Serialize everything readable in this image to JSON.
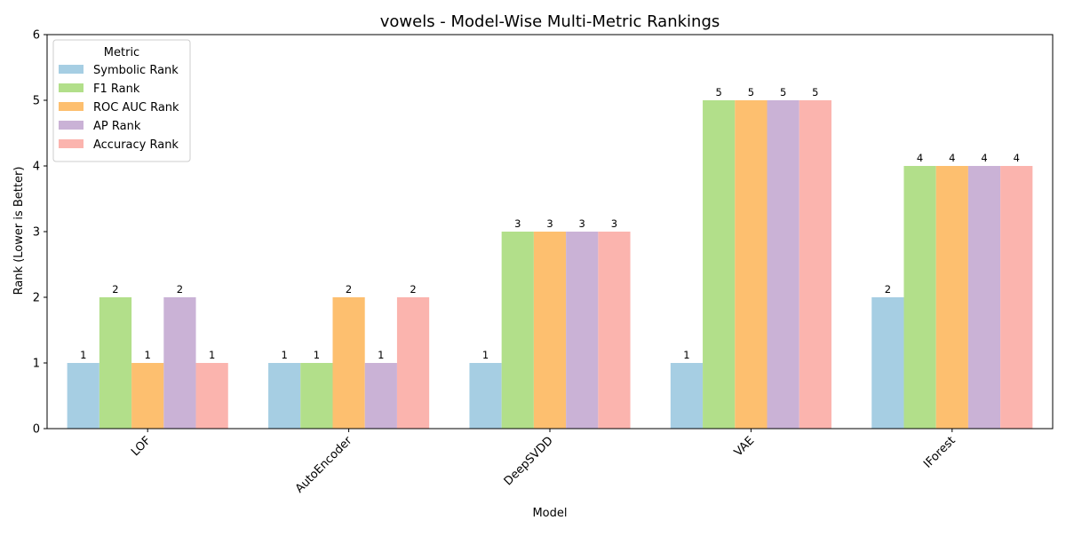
{
  "chart_data": {
    "type": "bar",
    "title": "vowels - Model-Wise Multi-Metric Rankings",
    "xlabel": "Model",
    "ylabel": "Rank (Lower is Better)",
    "ylim": [
      0,
      6
    ],
    "yticks": [
      0,
      1,
      2,
      3,
      4,
      5,
      6
    ],
    "categories": [
      "LOF",
      "AutoEncoder",
      "DeepSVDD",
      "VAE",
      "IForest"
    ],
    "series": [
      {
        "name": "Symbolic Rank",
        "color": "#a6cee3",
        "values": [
          1,
          1,
          1,
          1,
          2
        ]
      },
      {
        "name": "F1 Rank",
        "color": "#b2df8a",
        "values": [
          2,
          1,
          3,
          5,
          4
        ]
      },
      {
        "name": "ROC AUC Rank",
        "color": "#fdbf6f",
        "values": [
          1,
          2,
          3,
          5,
          4
        ]
      },
      {
        "name": "AP Rank",
        "color": "#cab2d6",
        "values": [
          2,
          1,
          3,
          5,
          4
        ]
      },
      {
        "name": "Accuracy Rank",
        "color": "#fbb4ae",
        "values": [
          1,
          2,
          3,
          5,
          4
        ]
      }
    ],
    "legend": {
      "title": "Metric",
      "position": "top-left"
    },
    "grid": false
  }
}
